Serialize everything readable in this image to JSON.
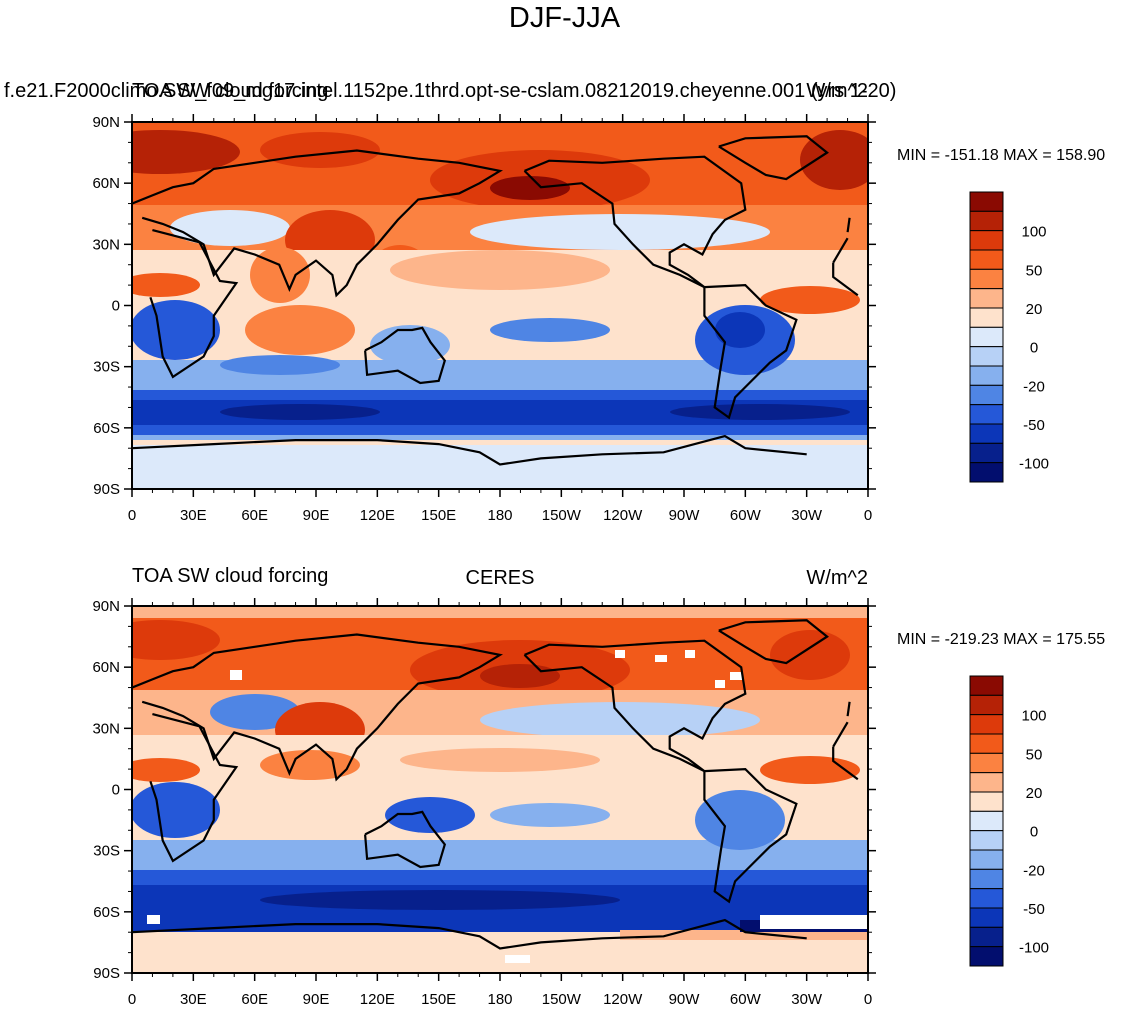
{
  "title": "DJF-JJA",
  "panels": [
    {
      "left_title_a": "f.e21.F2000climo.SW_f09_mg17.intel.1152pe.1thrd.opt-se-cslam.08212019.cheyenne.001 (yrs 1-20)",
      "left_title_b": "TOA SW cloud forcing",
      "center_title": "",
      "units": "W/m^2",
      "min_max": "MIN = -151.18 MAX = 158.90"
    },
    {
      "left_title_a": "",
      "left_title_b": "TOA SW cloud forcing",
      "center_title": "CERES",
      "units": "W/m^2",
      "min_max": "MIN = -219.23 MAX = 175.55"
    }
  ],
  "lat_labels": [
    "90N",
    "60N",
    "30N",
    "0",
    "30S",
    "60S",
    "90S"
  ],
  "lon_labels": [
    "0",
    "30E",
    "60E",
    "90E",
    "120E",
    "150E",
    "180",
    "150W",
    "120W",
    "90W",
    "60W",
    "30W",
    "0"
  ],
  "colorbar": {
    "colors": [
      "#8a0a02",
      "#b52206",
      "#dd3a0b",
      "#f25a1a",
      "#fb8241",
      "#fdb58b",
      "#fee2cc",
      "#dce9fa",
      "#b7d1f6",
      "#86b0ee",
      "#4f85e4",
      "#2558d8",
      "#0c36b8",
      "#07208c",
      "#020e6e"
    ],
    "labels": [
      "100",
      "50",
      "20",
      "0",
      "-20",
      "-50",
      "-100"
    ]
  },
  "chart_data": {
    "type": "heatmap",
    "title": "DJF-JJA",
    "variable": "TOA SW cloud forcing",
    "units": "W/m^2",
    "x_axis": "longitude",
    "y_axis": "latitude",
    "xlim": [
      0,
      360
    ],
    "ylim": [
      -90,
      90
    ],
    "panels": [
      {
        "name": "f.e21.F2000climo.SW_f09_mg17.intel.1152pe.1thrd.opt-se-cslam.08212019.cheyenne.001 (yrs 1-20)",
        "min": -151.18,
        "max": 158.9
      },
      {
        "name": "CERES",
        "min": -219.23,
        "max": 175.55
      }
    ]
  }
}
